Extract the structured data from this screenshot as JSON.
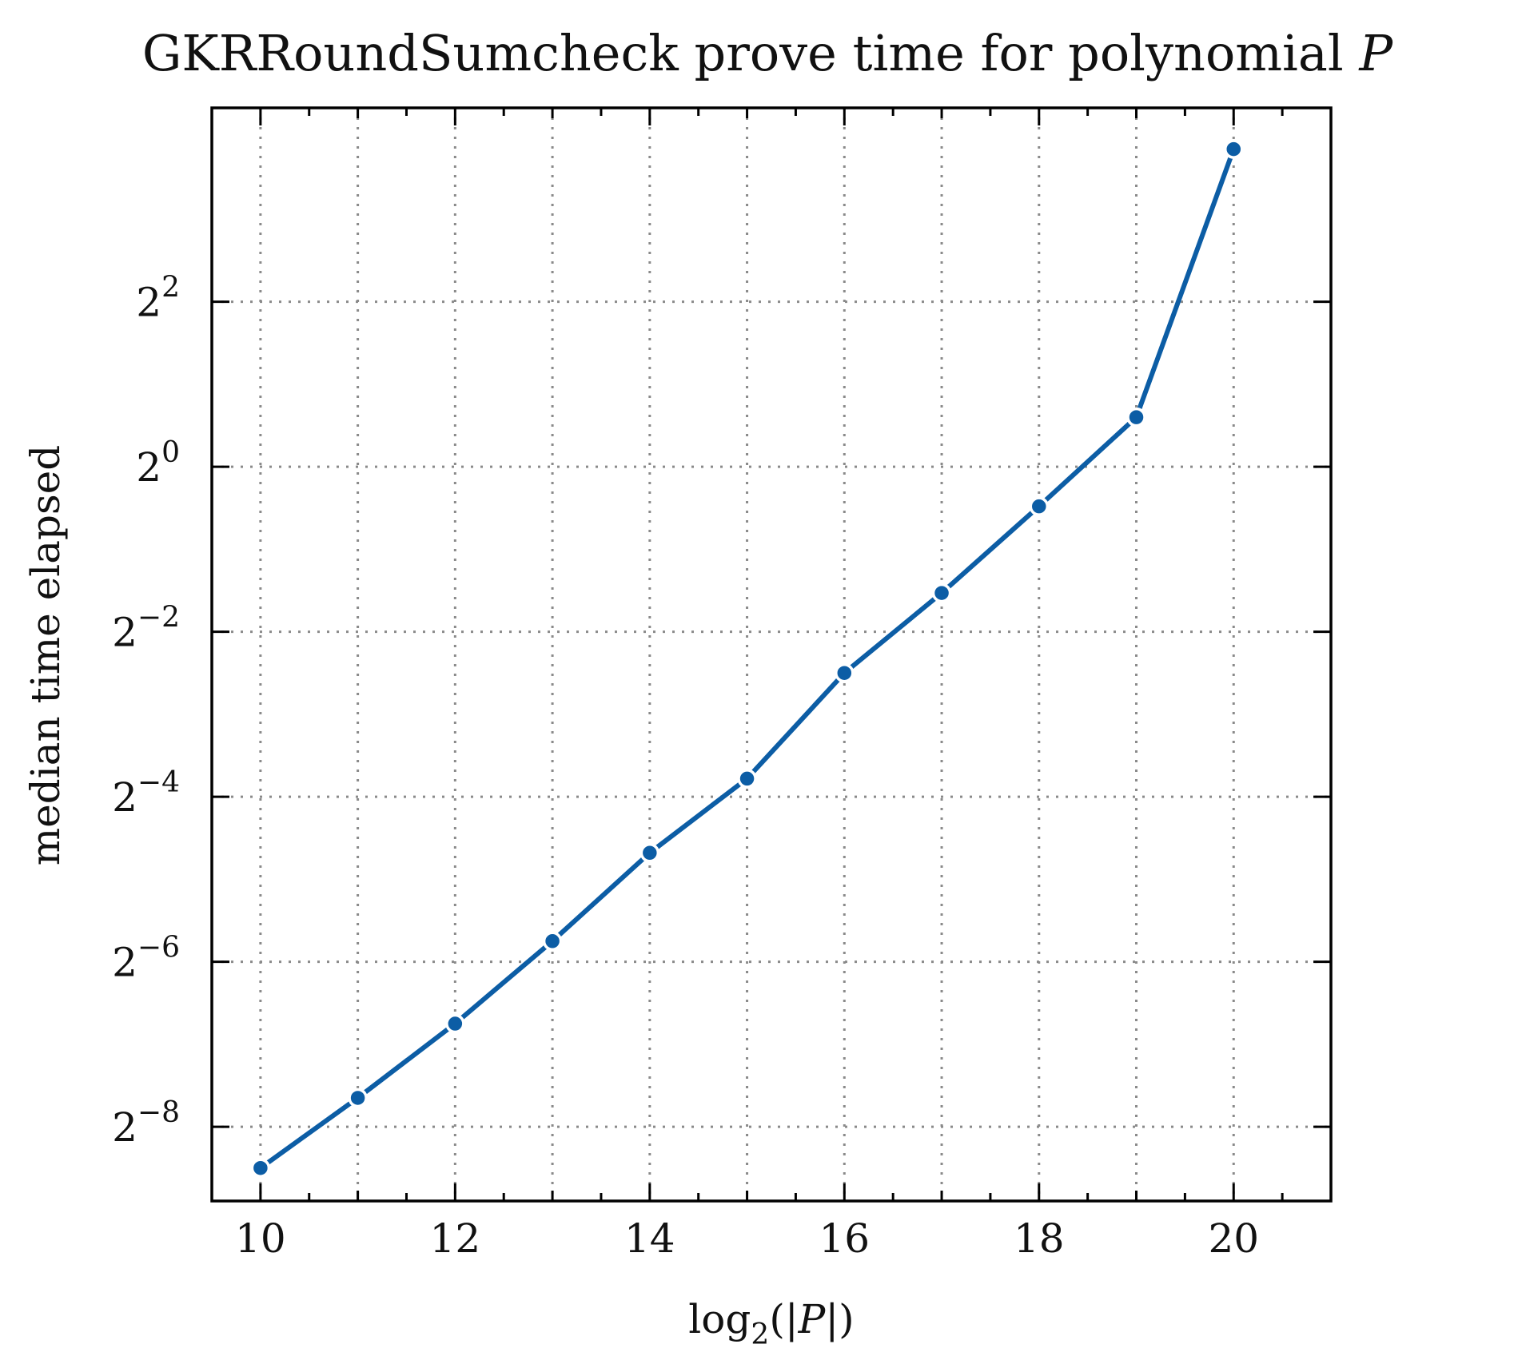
{
  "chart_data": {
    "type": "line",
    "title": "GKRRoundSumcheck prove time for polynomial P",
    "xlabel": "log2(|P|)",
    "ylabel": "median time elapsed",
    "x": [
      10,
      11,
      12,
      13,
      14,
      15,
      16,
      17,
      18,
      19,
      20
    ],
    "series": [
      {
        "values_log2": [
          -8.5,
          -7.65,
          -6.75,
          -5.75,
          -4.68,
          -3.78,
          -2.5,
          -1.53,
          -0.48,
          0.6,
          3.85
        ],
        "color": "#0c5da5"
      }
    ],
    "values_log2_note": "",
    "xlim": [
      9.5,
      21
    ],
    "ylim_log2": [
      -8.9,
      4.35
    ],
    "y_scale": "log2",
    "xticks": [
      10,
      12,
      14,
      16,
      18,
      20
    ],
    "xtick_labels": [
      "10",
      "12",
      "14",
      "16",
      "18",
      "20"
    ],
    "yticks_log2": [
      -8,
      -6,
      -4,
      -2,
      0,
      2
    ],
    "ytick_base": "2",
    "ytick_exponents": [
      "−8",
      "−6",
      "−4",
      "−2",
      "0",
      "2"
    ],
    "grid": true
  }
}
